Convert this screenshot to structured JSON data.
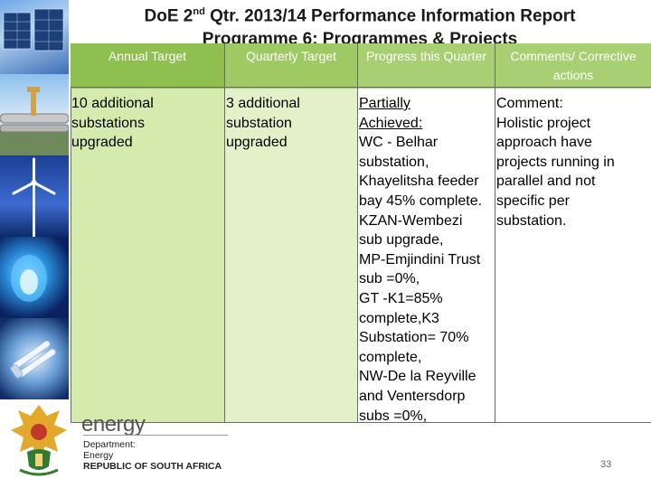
{
  "slide": {
    "title_pre": "DoE 2",
    "title_sup": "nd",
    "title_line1_rest": " Qtr. 2013/14 Performance Information Report",
    "title_line2": "Programme 6: Programmes & Projects"
  },
  "table": {
    "headers": [
      "Annual Target",
      "Quarterly Target",
      "Progress this Quarter",
      "Comments/ Corrective actions"
    ],
    "annual_target": "10 additional\nsubstations\nupgraded",
    "quarterly_target": "3 additional\nsubstation\nupgraded",
    "progress_status": "Partially\nAchieved:",
    "progress_details": "WC - Belhar\nsubstation,\nKhayelitsha feeder\nbay 45% complete.\nKZAN-Wembezi\nsub upgrade,\nMP-Emjindini Trust\nsub =0%,\nGT -K1=85%\ncomplete,K3\nSubstation= 70%\ncomplete,\nNW-De la Reyville\nand Ventersdorp\nsubs =0%,",
    "comments": "Comment:\nHolistic project\napproach have\nprojects running in\nparallel and not\nspecific per\nsubstation."
  },
  "footer": {
    "logo_word": "energy",
    "dept_line1": "Department:",
    "dept_line2": "Energy",
    "dept_line3": "REPUBLIC OF SOUTH AFRICA",
    "page_number": "33"
  },
  "colors": {
    "col1_bg": "#d5ebae",
    "col2_bg": "#e4f1c8",
    "header_green": "#8fbf4e"
  },
  "icons": [
    "solar-panels-photo",
    "gas-pipeline-photo",
    "wind-turbine-photo",
    "gas-flame-photo",
    "cfl-bulb-photo",
    "sa-coat-of-arms-emblem"
  ]
}
